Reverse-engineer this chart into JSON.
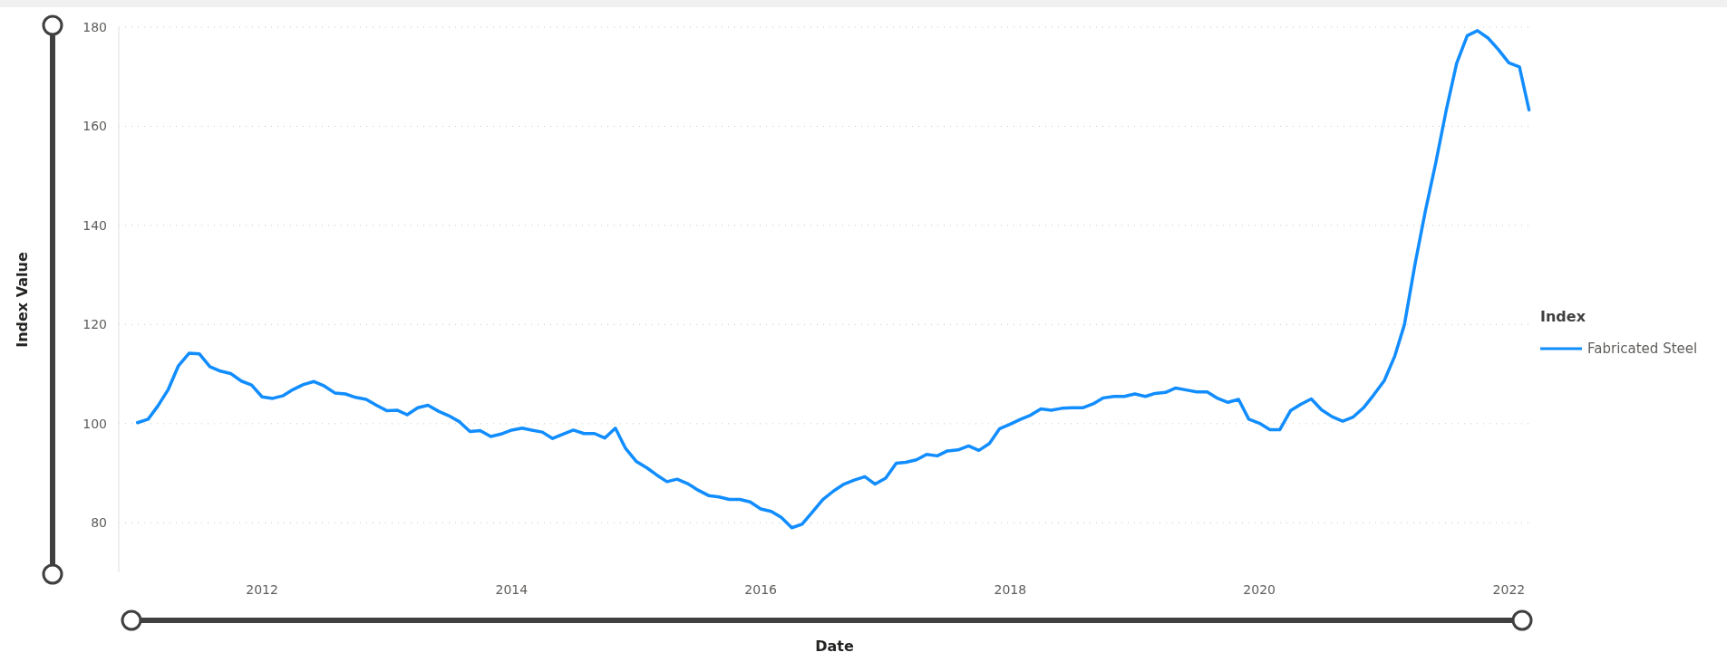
{
  "chart_data": {
    "type": "line",
    "xlabel": "Date",
    "ylabel": "Index Value",
    "legend_title": "Index",
    "x": [
      "2011-01",
      "2011-02",
      "2011-03",
      "2011-04",
      "2011-05",
      "2011-06",
      "2011-07",
      "2011-08",
      "2011-09",
      "2011-10",
      "2011-11",
      "2011-12",
      "2012-01",
      "2012-02",
      "2012-03",
      "2012-04",
      "2012-05",
      "2012-06",
      "2012-07",
      "2012-08",
      "2012-09",
      "2012-10",
      "2012-11",
      "2012-12",
      "2013-01",
      "2013-02",
      "2013-03",
      "2013-04",
      "2013-05",
      "2013-06",
      "2013-07",
      "2013-08",
      "2013-09",
      "2013-10",
      "2013-11",
      "2013-12",
      "2014-01",
      "2014-02",
      "2014-03",
      "2014-04",
      "2014-05",
      "2014-06",
      "2014-07",
      "2014-08",
      "2014-09",
      "2014-10",
      "2014-11",
      "2014-12",
      "2015-01",
      "2015-02",
      "2015-03",
      "2015-04",
      "2015-05",
      "2015-06",
      "2015-07",
      "2015-08",
      "2015-09",
      "2015-10",
      "2015-11",
      "2015-12",
      "2016-01",
      "2016-02",
      "2016-03",
      "2016-04",
      "2016-05",
      "2016-06",
      "2016-07",
      "2016-08",
      "2016-09",
      "2016-10",
      "2016-11",
      "2016-12",
      "2017-01",
      "2017-02",
      "2017-03",
      "2017-04",
      "2017-05",
      "2017-06",
      "2017-07",
      "2017-08",
      "2017-09",
      "2017-10",
      "2017-11",
      "2017-12",
      "2018-01",
      "2018-02",
      "2018-03",
      "2018-04",
      "2018-05",
      "2018-06",
      "2018-07",
      "2018-08",
      "2018-09",
      "2018-10",
      "2018-11",
      "2018-12",
      "2019-01",
      "2019-02",
      "2019-03",
      "2019-04",
      "2019-05",
      "2019-06",
      "2019-07",
      "2019-08",
      "2019-09",
      "2019-10",
      "2019-11",
      "2019-12",
      "2020-01",
      "2020-02",
      "2020-03",
      "2020-04",
      "2020-05",
      "2020-06",
      "2020-07",
      "2020-08",
      "2020-09",
      "2020-10",
      "2020-11",
      "2020-12",
      "2021-01",
      "2021-02",
      "2021-03",
      "2021-04",
      "2021-05",
      "2021-06",
      "2021-07",
      "2021-08",
      "2021-09",
      "2021-10",
      "2021-11",
      "2021-12",
      "2022-01",
      "2022-02",
      "2022-03"
    ],
    "series": [
      {
        "name": "Fabricated Steel",
        "color": "#118dff",
        "values": [
          100.2,
          100.9,
          103.5,
          106.9,
          111.7,
          114.2,
          114.1,
          111.5,
          110.6,
          110.1,
          108.6,
          107.8,
          105.4,
          105.1,
          105.6,
          106.9,
          107.9,
          108.5,
          107.6,
          106.2,
          106.0,
          105.3,
          104.9,
          103.7,
          102.6,
          102.7,
          101.8,
          103.2,
          103.7,
          102.5,
          101.6,
          100.4,
          98.4,
          98.6,
          97.4,
          97.9,
          98.7,
          99.1,
          98.7,
          98.3,
          97.0,
          97.9,
          98.7,
          98.0,
          98.0,
          97.1,
          99.1,
          95.0,
          92.4,
          91.1,
          89.7,
          88.3,
          88.8,
          87.9,
          86.6,
          85.5,
          85.2,
          84.7,
          84.7,
          84.2,
          82.8,
          82.3,
          81.1,
          79.0,
          79.7,
          82.2,
          84.7,
          86.4,
          87.8,
          88.6,
          89.3,
          87.8,
          89.0,
          92.0,
          92.2,
          92.7,
          93.8,
          93.5,
          94.5,
          94.7,
          95.5,
          94.6,
          96.0,
          99.0,
          99.9,
          100.9,
          101.7,
          103.0,
          102.7,
          103.1,
          103.2,
          103.2,
          104.0,
          105.2,
          105.5,
          105.5,
          106.0,
          105.5,
          106.1,
          106.3,
          107.2,
          106.8,
          106.4,
          106.4,
          105.1,
          104.3,
          104.9,
          100.9,
          100.1,
          98.8,
          98.8,
          102.6,
          103.9,
          105.0,
          102.8,
          101.4,
          100.5,
          101.3,
          103.2,
          105.8,
          108.7,
          113.7,
          120.0,
          132.2,
          142.8,
          152.7,
          163.1,
          172.7,
          178.3,
          179.3,
          177.8,
          175.5,
          172.8,
          172.0,
          163.3
        ]
      }
    ],
    "xlim": [
      "2010-11-07",
      "2022-03-10"
    ],
    "ylim": [
      70,
      180
    ],
    "xticks": [
      "2012",
      "2014",
      "2016",
      "2018",
      "2020",
      "2022"
    ],
    "yticks": [
      80,
      100,
      120,
      140,
      160,
      180
    ],
    "grid": "y",
    "legend": "right",
    "marker": "none",
    "line_style": "solid"
  }
}
